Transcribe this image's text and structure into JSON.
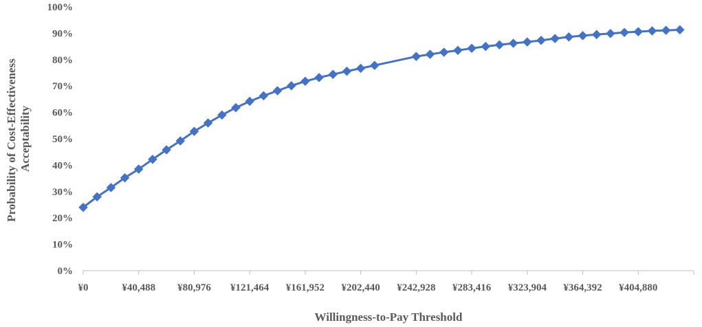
{
  "chart_data": {
    "type": "line",
    "title": "",
    "xlabel": "Willingness-to-Pay Threshold",
    "ylabel": [
      "Probability of Cost-Effectiveness",
      "Acceptability"
    ],
    "ylim": [
      0,
      100
    ],
    "yticks": [
      "0%",
      "10%",
      "20%",
      "30%",
      "40%",
      "50%",
      "60%",
      "70%",
      "80%",
      "90%",
      "100%"
    ],
    "xlim": [
      0,
      445368
    ],
    "xtick_values": [
      0,
      40488,
      80976,
      121464,
      161952,
      202440,
      242928,
      283416,
      323904,
      364392,
      404880
    ],
    "xtick_labels": [
      "¥0",
      "¥40,488",
      "¥80,976",
      "¥121,464",
      "¥161,952",
      "¥202,440",
      "¥242,928",
      "¥283,416",
      "¥323,904",
      "¥364,392",
      "¥404,880"
    ],
    "grid": false,
    "colors": {
      "series": "#4472c4",
      "axis": "#bfbfbf",
      "text": "#595959"
    },
    "series": [
      {
        "marker": "diamond",
        "x": [
          0,
          10122,
          20244,
          30366,
          40488,
          50610,
          60732,
          70854,
          80976,
          91098,
          101220,
          111342,
          121464,
          131586,
          141708,
          151830,
          161952,
          172074,
          182196,
          192318,
          202440,
          212562,
          242928,
          253050,
          263172,
          273294,
          283416,
          293538,
          303660,
          313782,
          323904,
          334026,
          344148,
          354270,
          364392,
          374514,
          384636,
          394758,
          404880,
          415002,
          425124,
          435246
        ],
        "y": [
          24.0,
          28.0,
          31.5,
          35.2,
          38.5,
          42.2,
          45.8,
          49.2,
          52.8,
          56.0,
          59.0,
          61.8,
          64.2,
          66.3,
          68.2,
          70.1,
          71.8,
          73.2,
          74.4,
          75.6,
          76.7,
          77.8,
          81.2,
          82.0,
          82.8,
          83.5,
          84.3,
          85.0,
          85.6,
          86.2,
          86.7,
          87.3,
          88.0,
          88.6,
          89.1,
          89.5,
          89.9,
          90.3,
          90.6,
          90.9,
          91.1,
          91.3
        ]
      }
    ]
  }
}
